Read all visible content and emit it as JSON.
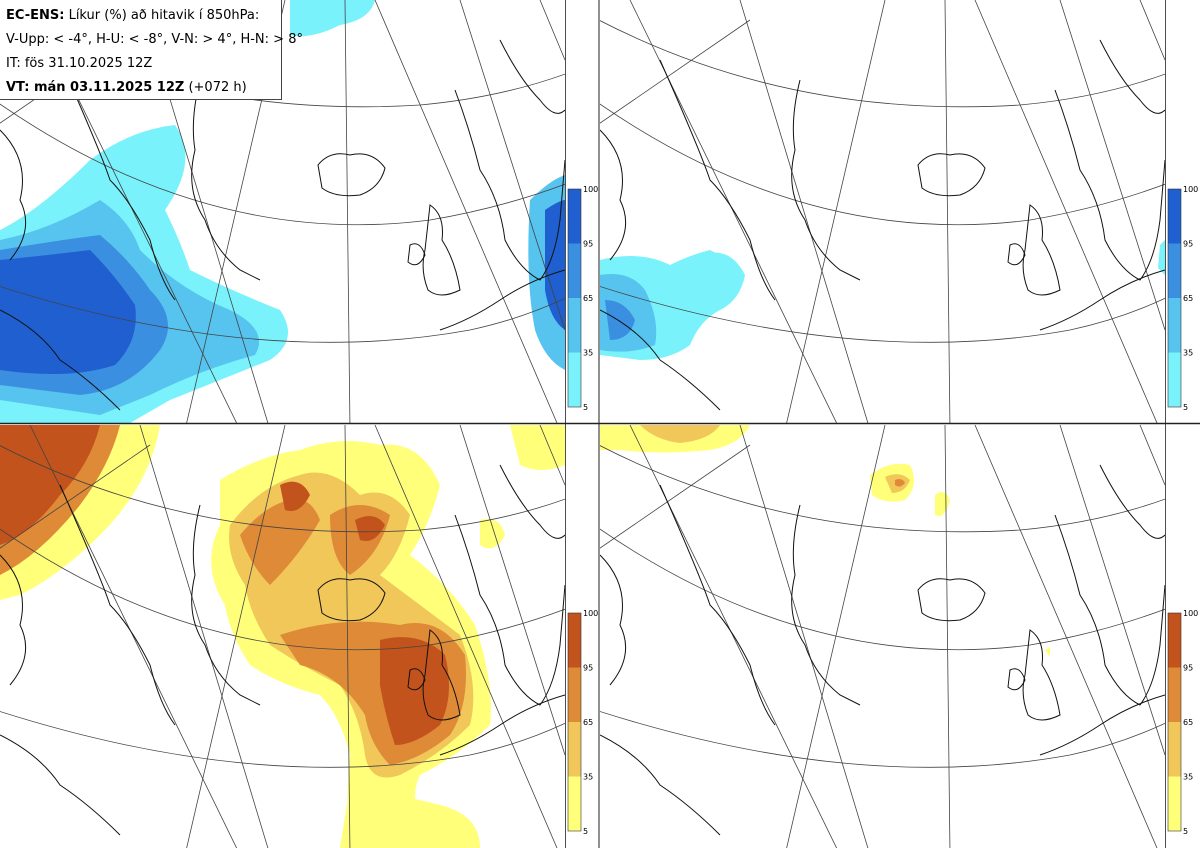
{
  "header": {
    "model": "EC-ENS:",
    "title": " Líkur (%) að hitavik í 850hPa:",
    "line2": "V-Upp: < -4°, H-U: < -8°, V-N: > 4°, H-N: > 8°",
    "line3": "IT: fös 31.10.2025 12Z",
    "vt_bold": "VT: mán 03.11.2025 12Z",
    "vt_rest": " (+072 h)"
  },
  "colorbars": {
    "cold_colors": [
      "#ffffff",
      "#7af2fb",
      "#56c4ee",
      "#3a8fe0",
      "#1f5fcf"
    ],
    "warm_colors": [
      "#ffffff",
      "#ffff7a",
      "#f1c75a",
      "#de8a36",
      "#c3531c"
    ],
    "ticks": [
      "100",
      "95",
      "65",
      "35",
      "5"
    ]
  },
  "panels": [
    {
      "id": "v-upp",
      "kind": "cold",
      "threshold": "< -4°"
    },
    {
      "id": "h-u",
      "kind": "cold",
      "threshold": "< -8°"
    },
    {
      "id": "v-n",
      "kind": "warm",
      "threshold": "> 4°"
    },
    {
      "id": "h-n",
      "kind": "warm",
      "threshold": "> 8°"
    }
  ]
}
